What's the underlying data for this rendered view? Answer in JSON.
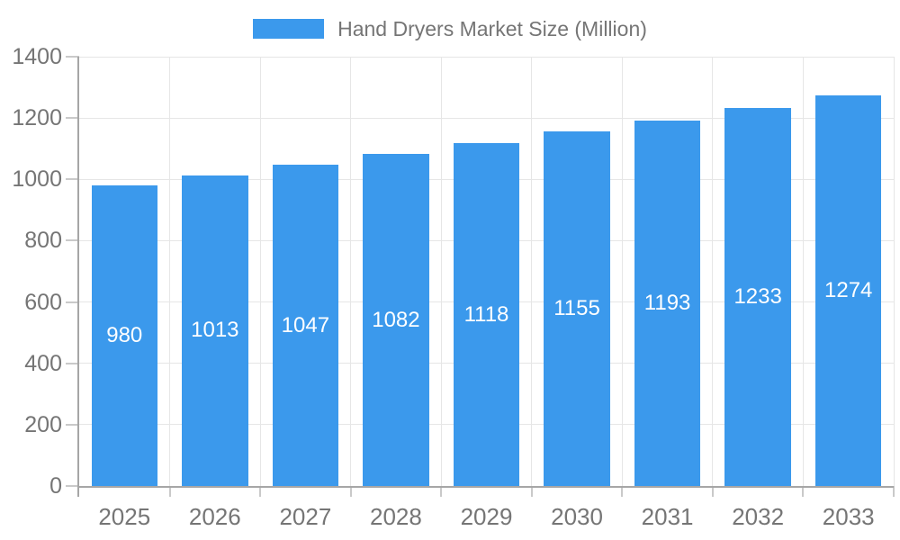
{
  "chart_data": {
    "type": "bar",
    "title": "Hand Dryers Market Size (Million)",
    "categories": [
      "2025",
      "2026",
      "2027",
      "2028",
      "2029",
      "2030",
      "2031",
      "2032",
      "2033"
    ],
    "values": [
      980,
      1013,
      1047,
      1082,
      1118,
      1155,
      1193,
      1233,
      1274
    ],
    "xlabel": "",
    "ylabel": "",
    "ylim": [
      0,
      1400
    ],
    "yticks": [
      0,
      200,
      400,
      600,
      800,
      1000,
      1200,
      1400
    ],
    "legend_position": "top",
    "grid": true,
    "bar_value_labels_inside": true,
    "colors": {
      "bar": "#3B99EC",
      "bar_label_text": "#FFFFFF",
      "axis_text": "#757575",
      "legend_text": "#757575",
      "grid_line": "#E6E6E6",
      "tick_line": "#C9C9C9",
      "axis_line": "#A6A6A6",
      "background": "#FFFFFF"
    }
  }
}
